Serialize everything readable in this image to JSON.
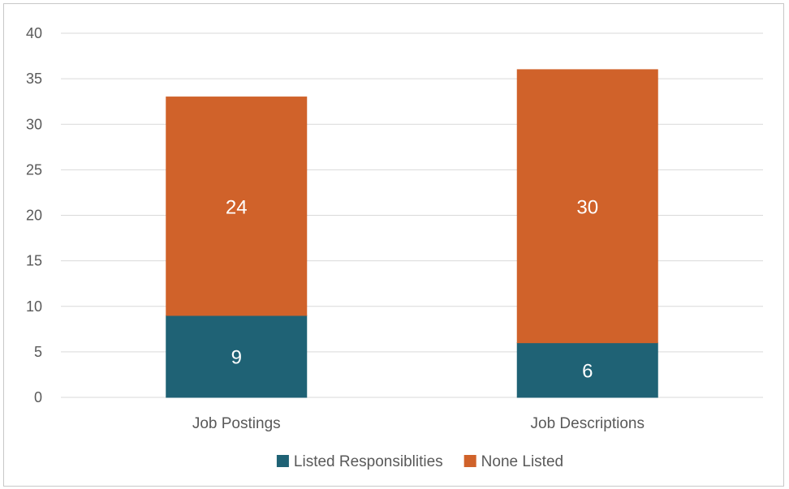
{
  "chart_data": {
    "type": "bar",
    "stacked": true,
    "categories": [
      "Job Postings",
      "Job Descriptions"
    ],
    "series": [
      {
        "name": "Listed Responsiblities",
        "values": [
          9,
          6
        ],
        "color": "#1f6275"
      },
      {
        "name": "None Listed",
        "values": [
          24,
          30
        ],
        "color": "#d0622a"
      }
    ],
    "ylim": [
      0,
      40
    ],
    "yticks": [
      0,
      5,
      10,
      15,
      20,
      25,
      30,
      35,
      40
    ],
    "grid": true,
    "legend_position": "bottom"
  }
}
